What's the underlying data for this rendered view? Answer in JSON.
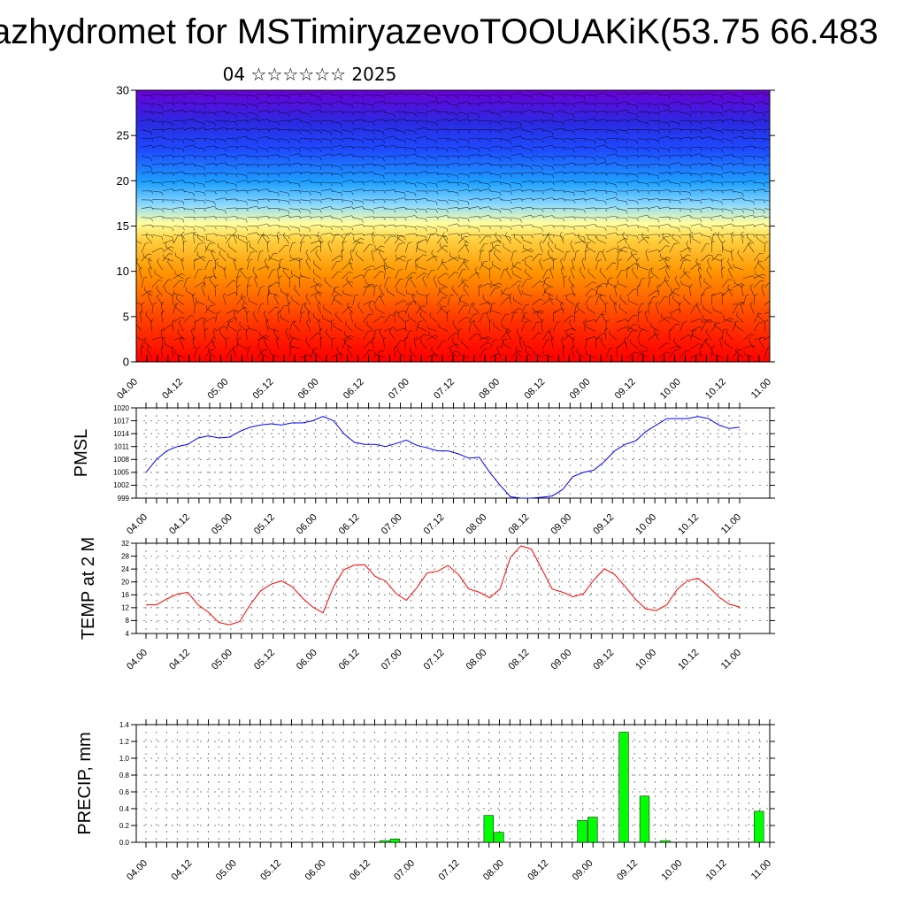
{
  "header": {
    "title": "azhydromet for MSTimiryazevoTOOUAKiK(53.75 66.483",
    "subtitle": "04 ☆☆☆☆☆☆ 2025"
  },
  "colors": {
    "pressure_line": "#0000ff",
    "temp_line": "#ff0000",
    "precip_bar": "#00ff00",
    "cross_section_top": "#6a00d8",
    "cross_section_mid": "#1e4bff",
    "cross_section_pale": "#ffffa0",
    "cross_section_bottom": "#ff0000"
  },
  "chart_data": [
    {
      "type": "heatmap",
      "title": "",
      "ylim": [
        0,
        30
      ],
      "yticks": [
        "0",
        "5",
        "10",
        "15",
        "20",
        "25",
        "30"
      ],
      "xticks": [
        "04.00",
        "04.12",
        "05.00",
        "05.12",
        "06.00",
        "06.12",
        "07.00",
        "07.12",
        "08.00",
        "08.12",
        "09.00",
        "09.12",
        "10.00",
        "10.12",
        "11.00"
      ],
      "overlay": "wind barbs"
    },
    {
      "type": "line",
      "ylabel": "PMSL",
      "ylim": [
        999,
        1020
      ],
      "yticks": [
        "999",
        "1002",
        "1005",
        "1008",
        "1011",
        "1014",
        "1017",
        "1020"
      ],
      "xticks": [
        "04.00",
        "04.12",
        "05.00",
        "05.12",
        "06.00",
        "06.12",
        "07.00",
        "07.12",
        "08.00",
        "08.12",
        "09.00",
        "09.12",
        "10.00",
        "10.12",
        "11.00"
      ],
      "series": [
        {
          "values": [
            1005,
            1008,
            1010,
            1011,
            1011.5,
            1013,
            1013.5,
            1013,
            1013.2,
            1014.5,
            1015.5,
            1016,
            1016.3,
            1016,
            1016.5,
            1016.5,
            1017,
            1018,
            1017,
            1014,
            1012,
            1011.5,
            1011.5,
            1011,
            1011.7,
            1012.5,
            1011.3,
            1010.7,
            1010,
            1010,
            1009.3,
            1008.3,
            1008.5,
            1005,
            1002,
            999.3,
            999,
            999,
            999.2,
            999.5,
            1001,
            1004,
            1005,
            1005.5,
            1007.5,
            1010,
            1011.5,
            1012.3,
            1014.5,
            1016,
            1017.5,
            1017.5,
            1017.5,
            1018,
            1017.5,
            1016,
            1015.2,
            1015.5
          ]
        }
      ]
    },
    {
      "type": "line",
      "ylabel": "TEMP at 2 M",
      "ylim": [
        4,
        32
      ],
      "yticks": [
        "4",
        "8",
        "12",
        "16",
        "20",
        "24",
        "28",
        "32"
      ],
      "xticks": [
        "04.00",
        "04.12",
        "05.00",
        "05.12",
        "06.00",
        "06.12",
        "07.00",
        "07.12",
        "08.00",
        "08.12",
        "09.00",
        "09.12",
        "10.00",
        "10.12",
        "11.00"
      ],
      "series": [
        {
          "values": [
            12.9,
            12.9,
            14.7,
            16.2,
            16.8,
            12.9,
            10.6,
            7.4,
            6.7,
            7.7,
            12.9,
            17.2,
            19.3,
            20.3,
            18.6,
            15.1,
            12.2,
            10.4,
            18.5,
            23.8,
            25.2,
            25.3,
            21.7,
            20.3,
            16.4,
            14.3,
            18.2,
            22.8,
            23.3,
            25.1,
            22.3,
            17.8,
            16.8,
            15.1,
            17.8,
            27.7,
            31.2,
            30.2,
            24.1,
            17.8,
            16.8,
            15.4,
            16.3,
            20.6,
            24.1,
            22.3,
            18.6,
            14.6,
            11.6,
            11.1,
            12.9,
            17.7,
            20.4,
            21.1,
            18.6,
            15.3,
            13.1,
            12.2
          ]
        }
      ]
    },
    {
      "type": "bar",
      "ylabel": "PRECIP, mm",
      "ylim": [
        0,
        1.4
      ],
      "yticks": [
        "0.0",
        "0.2",
        "0.4",
        "0.6",
        "0.8",
        "1.0",
        "1.2",
        "1.4"
      ],
      "xticks": [
        "04.00",
        "04.12",
        "05.00",
        "05.12",
        "06.00",
        "06.12",
        "07.00",
        "07.12",
        "08.00",
        "08.12",
        "09.00",
        "09.12",
        "10.00",
        "10.12",
        "11.00"
      ],
      "bars": [
        {
          "x": 23,
          "value": 0.02
        },
        {
          "x": 24,
          "value": 0.04
        },
        {
          "x": 33,
          "value": 0.32
        },
        {
          "x": 34,
          "value": 0.12
        },
        {
          "x": 42,
          "value": 0.26
        },
        {
          "x": 43,
          "value": 0.3
        },
        {
          "x": 46,
          "value": 1.31
        },
        {
          "x": 48,
          "value": 0.55
        },
        {
          "x": 50,
          "value": 0.02
        },
        {
          "x": 59,
          "value": 0.37
        }
      ]
    }
  ]
}
